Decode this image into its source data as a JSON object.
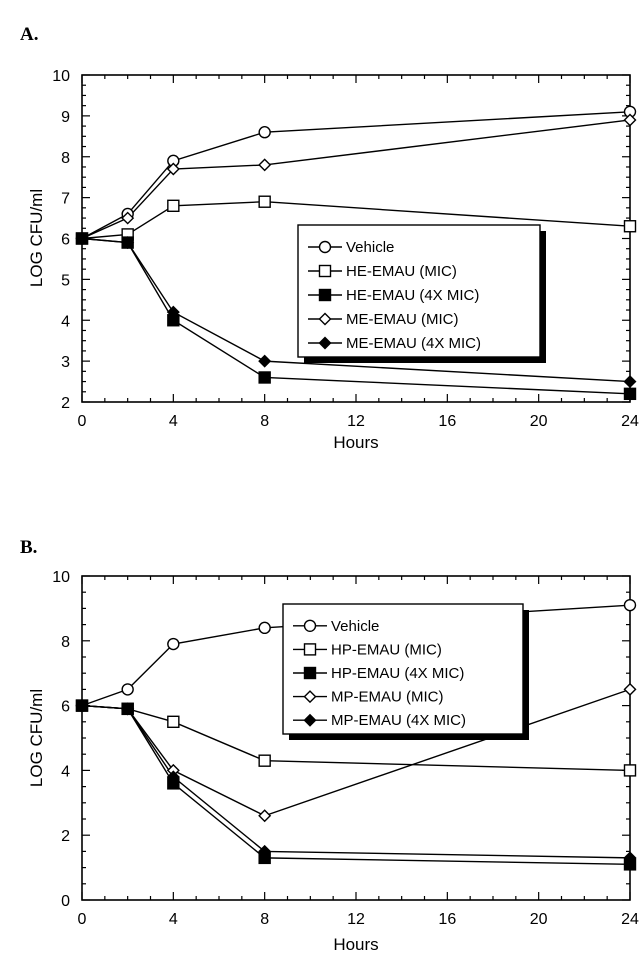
{
  "chart_data": [
    {
      "panel_label": "A.",
      "type": "line",
      "xlabel": "Hours",
      "ylabel": "LOG CFU/ml",
      "xlim": [
        0,
        24
      ],
      "ylim": [
        2,
        10
      ],
      "xticks": [
        0,
        4,
        8,
        12,
        16,
        20,
        24
      ],
      "yticks": [
        2,
        3,
        4,
        5,
        6,
        7,
        8,
        9,
        10
      ],
      "grid": false,
      "legend_position": "center-right",
      "x": [
        0,
        2,
        4,
        8,
        24
      ],
      "series": [
        {
          "name": "Vehicle",
          "marker": "open-circle",
          "values": [
            6.0,
            6.6,
            7.9,
            8.6,
            9.1
          ]
        },
        {
          "name": "HE-EMAU (MIC)",
          "marker": "open-square",
          "values": [
            6.0,
            6.1,
            6.8,
            6.9,
            6.3
          ]
        },
        {
          "name": "HE-EMAU (4X MIC)",
          "marker": "filled-square",
          "values": [
            6.0,
            5.9,
            4.0,
            2.6,
            2.2
          ]
        },
        {
          "name": "ME-EMAU (MIC)",
          "marker": "open-diamond",
          "values": [
            6.0,
            6.5,
            7.7,
            7.8,
            8.9
          ]
        },
        {
          "name": "ME-EMAU (4X MIC)",
          "marker": "filled-diamond",
          "values": [
            6.0,
            5.9,
            4.2,
            3.0,
            2.5
          ]
        }
      ]
    },
    {
      "panel_label": "B.",
      "type": "line",
      "xlabel": "Hours",
      "ylabel": "LOG CFU/ml",
      "xlim": [
        0,
        24
      ],
      "ylim": [
        0,
        10
      ],
      "xticks": [
        0,
        4,
        8,
        12,
        16,
        20,
        24
      ],
      "yticks": [
        0,
        2,
        4,
        6,
        8,
        10
      ],
      "grid": false,
      "legend_position": "top-right",
      "x": [
        0,
        2,
        4,
        8,
        24
      ],
      "series": [
        {
          "name": "Vehicle",
          "marker": "open-circle",
          "values": [
            6.0,
            6.5,
            7.9,
            8.4,
            9.1
          ]
        },
        {
          "name": "HP-EMAU (MIC)",
          "marker": "open-square",
          "values": [
            6.0,
            5.9,
            5.5,
            4.3,
            4.0
          ]
        },
        {
          "name": "HP-EMAU (4X MIC)",
          "marker": "filled-square",
          "values": [
            6.0,
            5.9,
            3.6,
            1.3,
            1.1
          ]
        },
        {
          "name": "MP-EMAU (MIC)",
          "marker": "open-diamond",
          "values": [
            6.0,
            5.9,
            4.0,
            2.6,
            6.5
          ]
        },
        {
          "name": "MP-EMAU (4X MIC)",
          "marker": "filled-diamond",
          "values": [
            6.0,
            5.9,
            3.8,
            1.5,
            1.3
          ]
        }
      ]
    }
  ]
}
